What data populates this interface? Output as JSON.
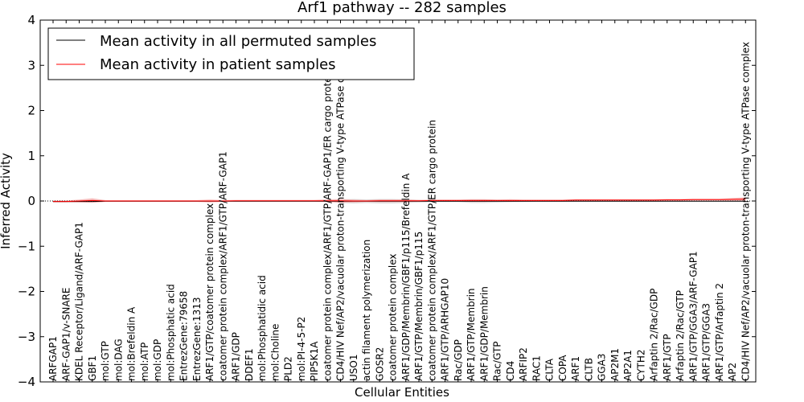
{
  "chart_data": {
    "type": "line",
    "title": "Arf1 pathway -- 282 samples",
    "xlabel": "Cellular Entities",
    "ylabel": "Inferred Activity",
    "ylim": [
      -4,
      4
    ],
    "yticks": [
      -4,
      -3,
      -2,
      -1,
      0,
      1,
      2,
      3,
      4
    ],
    "legend_position": "top-left",
    "categories": [
      "ARFGAP1",
      "ARF-GAP1/v-SNARE",
      "KDEL Receptor/Ligand/ARF-GAP1",
      "GBF1",
      "mol:GTP",
      "mol:DAG",
      "mol:Brefeldin A",
      "mol:ATP",
      "mol:GDP",
      "mol:Phosphatic acid",
      "EntrezGene:79658",
      "EntrezGene:1313",
      "ARF1/GTP/coatomer protein complex",
      "coatomer protein complex/ARF1/GTP/ARF-GAP1",
      "ARF1/GDP",
      "DDEF1",
      "mol:Phosphatidic acid",
      "mol:Choline",
      "PLD2",
      "mol:PI-4-5-P2",
      "PIP5K1A",
      "coatomer protein complex/ARF1/GTP/ARF-GAP1/ER cargo protein",
      "CD4/HIV Nef/AP2/vacuolar proton-transporting V-type ATPase complex",
      "USO1",
      "actin filament polymerization",
      "GOSR2",
      "coatomer protein complex",
      "ARF1/GDP/Membrin/GBF1/p115/Brefeldin A",
      "ARF1/GTP/Membrin/GBF1/p115",
      "coatomer protein complex/ARF1/GTP/ER cargo protein",
      "ARF1/GTP/ARHGAP10",
      "Rac/GDP",
      "ARF1/GTP/Membrin",
      "ARF1/GDP/Membrin",
      "Rac/GTP",
      "CD4",
      "ARFIP2",
      "RAC1",
      "CLTA",
      "COPA",
      "ARF1",
      "CLTB",
      "GGA3",
      "AP2M1",
      "AP2A1",
      "CYTH2",
      "Arfaptin 2/Rac/GDP",
      "ARF1/GTP",
      "Arfaptin 2/Rac/GTP",
      "ARF1/GTP/GGA3/ARF-GAP1",
      "ARF1/GTP/GGA3",
      "ARF1/GTP/Arfaptin 2",
      "AP2",
      "CD4/HIV Nef/AP2/vacuolar proton-transporting V-type ATPase complex"
    ],
    "series": [
      {
        "name": "Mean activity in all permuted samples",
        "color": "#000000",
        "band_color": "#c8c8c8",
        "values": [
          -0.01,
          -0.01,
          -0.01,
          -0.01,
          -0.005,
          -0.005,
          -0.005,
          -0.005,
          -0.005,
          -0.005,
          -0.005,
          -0.005,
          -0.005,
          -0.005,
          -0.005,
          -0.005,
          -0.005,
          -0.005,
          -0.005,
          -0.005,
          -0.005,
          -0.005,
          -0.005,
          -0.005,
          -0.005,
          -0.005,
          -0.005,
          -0.005,
          -0.005,
          -0.005,
          -0.005,
          -0.005,
          -0.005,
          -0.005,
          -0.005,
          -0.005,
          -0.005,
          -0.005,
          -0.005,
          -0.005,
          -0.005,
          -0.005,
          -0.005,
          -0.005,
          -0.005,
          -0.005,
          -0.005,
          -0.005,
          -0.005,
          -0.005,
          -0.005,
          -0.005,
          -0.005,
          -0.005
        ],
        "band": [
          0.01,
          0.01,
          0.01,
          0.01,
          0.01,
          0.01,
          0.01,
          0.01,
          0.01,
          0.01,
          0.01,
          0.01,
          0.01,
          0.01,
          0.01,
          0.01,
          0.01,
          0.01,
          0.01,
          0.01,
          0.01,
          0.01,
          0.04,
          0.05,
          0.04,
          0.05,
          0.05,
          0.04,
          0.03,
          0.02,
          0.02,
          0.02,
          0.04,
          0.04,
          0.03,
          0.02,
          0.02,
          0.01,
          0.01,
          0.01,
          0.01,
          0.01,
          0.01,
          0.01,
          0.01,
          0.01,
          0.01,
          0.01,
          0.01,
          0.01,
          0.01,
          0.01,
          0.01,
          0.01
        ]
      },
      {
        "name": "Mean activity in patient samples",
        "color": "#ff0000",
        "band_color": "#f4a0a0",
        "values": [
          -0.01,
          -0.01,
          0.0,
          0.01,
          0.0,
          0.0,
          0.0,
          0.0,
          0.0,
          0.0,
          0.0,
          0.0,
          0.0,
          0.0,
          0.005,
          0.005,
          0.005,
          0.005,
          0.005,
          0.005,
          0.005,
          0.005,
          0.005,
          0.0,
          0.0,
          0.005,
          0.005,
          0.005,
          0.005,
          0.01,
          0.01,
          0.01,
          0.01,
          0.01,
          0.01,
          0.01,
          0.01,
          0.01,
          0.01,
          0.01,
          0.02,
          0.02,
          0.02,
          0.02,
          0.02,
          0.02,
          0.02,
          0.025,
          0.025,
          0.03,
          0.03,
          0.03,
          0.035,
          0.04
        ],
        "band": [
          0.02,
          0.02,
          0.03,
          0.05,
          0.02,
          0.02,
          0.02,
          0.02,
          0.02,
          0.02,
          0.02,
          0.02,
          0.03,
          0.02,
          0.02,
          0.02,
          0.02,
          0.02,
          0.02,
          0.02,
          0.02,
          0.03,
          0.04,
          0.03,
          0.02,
          0.03,
          0.03,
          0.03,
          0.02,
          0.02,
          0.02,
          0.02,
          0.03,
          0.03,
          0.02,
          0.03,
          0.02,
          0.02,
          0.02,
          0.02,
          0.02,
          0.02,
          0.02,
          0.02,
          0.02,
          0.02,
          0.02,
          0.02,
          0.02,
          0.02,
          0.02,
          0.02,
          0.03,
          0.04
        ]
      }
    ]
  }
}
